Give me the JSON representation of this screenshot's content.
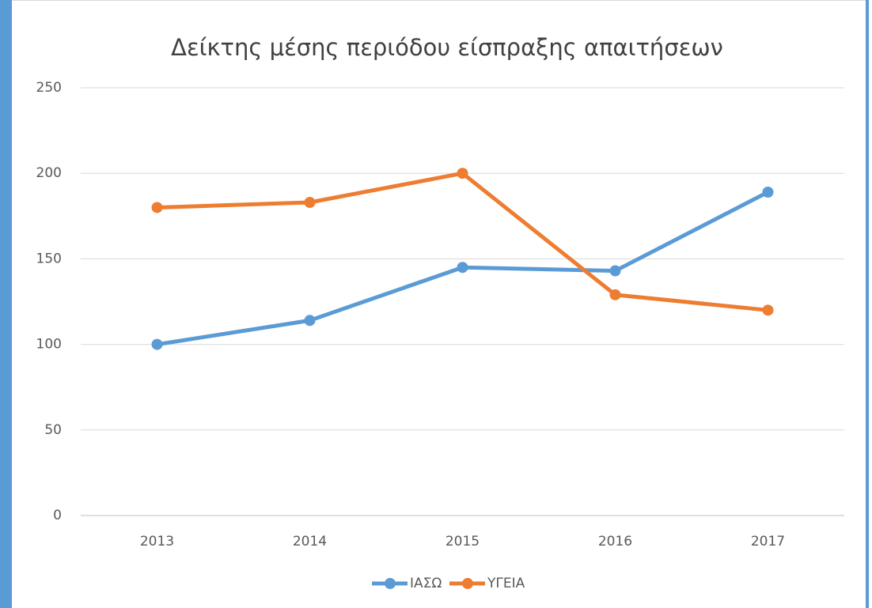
{
  "chart_data": {
    "type": "line",
    "title": "Δείκτης μέσης περιόδου είσπραξης απαιτήσεων",
    "categories": [
      "2013",
      "2014",
      "2015",
      "2016",
      "2017"
    ],
    "series": [
      {
        "name": "ΙΑΣΩ",
        "color": "#5b9bd5",
        "values": [
          100,
          114,
          145,
          143,
          189
        ]
      },
      {
        "name": "ΥΓΕΙΑ",
        "color": "#ed7d31",
        "values": [
          180,
          183,
          200,
          129,
          120
        ]
      }
    ],
    "ylim": [
      0,
      250
    ],
    "yticks": [
      0,
      50,
      100,
      150,
      200,
      250
    ],
    "grid": true,
    "legend": "bottom"
  }
}
